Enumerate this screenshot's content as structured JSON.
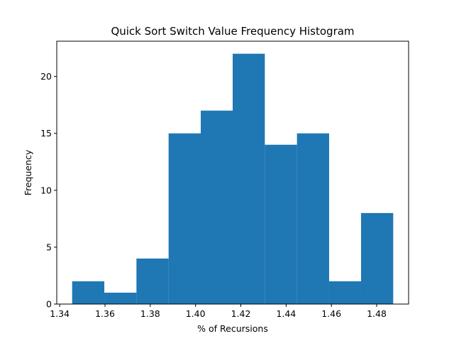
{
  "chart_data": {
    "type": "bar",
    "title": "Quick Sort Switch Value Frequency Histogram",
    "xlabel": "% of Recursions",
    "ylabel": "Frequency",
    "xlim": [
      1.3387,
      1.4941
    ],
    "ylim": [
      0,
      23.1
    ],
    "grid": false,
    "bar_color": "#1f77b4",
    "bins": [
      {
        "x0": 1.3455,
        "x1": 1.3597,
        "count": 2
      },
      {
        "x0": 1.3597,
        "x1": 1.3739,
        "count": 1
      },
      {
        "x0": 1.3739,
        "x1": 1.3881,
        "count": 4
      },
      {
        "x0": 1.3881,
        "x1": 1.4023,
        "count": 15
      },
      {
        "x0": 1.4023,
        "x1": 1.4164,
        "count": 17
      },
      {
        "x0": 1.4164,
        "x1": 1.4306,
        "count": 22
      },
      {
        "x0": 1.4306,
        "x1": 1.4448,
        "count": 14
      },
      {
        "x0": 1.4448,
        "x1": 1.459,
        "count": 15
      },
      {
        "x0": 1.459,
        "x1": 1.4731,
        "count": 2
      },
      {
        "x0": 1.4731,
        "x1": 1.4873,
        "count": 8
      }
    ],
    "xticks": [
      {
        "value": 1.34,
        "label": "1.34"
      },
      {
        "value": 1.36,
        "label": "1.36"
      },
      {
        "value": 1.38,
        "label": "1.38"
      },
      {
        "value": 1.4,
        "label": "1.40"
      },
      {
        "value": 1.42,
        "label": "1.42"
      },
      {
        "value": 1.44,
        "label": "1.44"
      },
      {
        "value": 1.46,
        "label": "1.46"
      },
      {
        "value": 1.48,
        "label": "1.48"
      }
    ],
    "yticks": [
      {
        "value": 0,
        "label": "0"
      },
      {
        "value": 5,
        "label": "5"
      },
      {
        "value": 10,
        "label": "10"
      },
      {
        "value": 15,
        "label": "15"
      },
      {
        "value": 20,
        "label": "20"
      }
    ]
  }
}
